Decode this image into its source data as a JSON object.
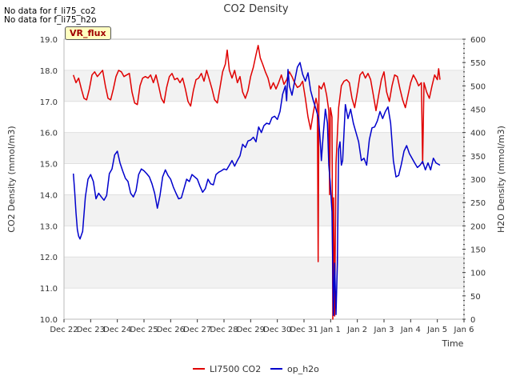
{
  "notes": [
    "No data for f_li75_co2",
    "No data for f_li75_h2o"
  ],
  "badge": "VR_flux",
  "chart_data": {
    "type": "line",
    "title": "CO2 Density",
    "xlabel": "Time",
    "ylabel": "CO2 Density (mmol/m3)",
    "y2label": "H2O Density (mmol/m3)",
    "xlim": [
      0,
      15
    ],
    "ylim": [
      10.0,
      19.0
    ],
    "y2lim": [
      0,
      600
    ],
    "x_ticks": [
      {
        "x": 0,
        "label": "Dec 22"
      },
      {
        "x": 1,
        "label": "Dec 23"
      },
      {
        "x": 2,
        "label": "Dec 24"
      },
      {
        "x": 3,
        "label": "Dec 25"
      },
      {
        "x": 4,
        "label": "Dec 26"
      },
      {
        "x": 5,
        "label": "Dec 27"
      },
      {
        "x": 6,
        "label": "Dec 28"
      },
      {
        "x": 7,
        "label": "Dec 29"
      },
      {
        "x": 8,
        "label": "Dec 30"
      },
      {
        "x": 9,
        "label": "Dec 31"
      },
      {
        "x": 10,
        "label": "Jan 1"
      },
      {
        "x": 11,
        "label": "Jan 2"
      },
      {
        "x": 12,
        "label": "Jan 3"
      },
      {
        "x": 13,
        "label": "Jan 4"
      },
      {
        "x": 14,
        "label": "Jan 5"
      },
      {
        "x": 15,
        "label": "Jan 6"
      }
    ],
    "y_ticks": [
      "10.0",
      "11.0",
      "12.0",
      "13.0",
      "14.0",
      "15.0",
      "16.0",
      "17.0",
      "18.0",
      "19.0"
    ],
    "y2_ticks": [
      "0",
      "50",
      "100",
      "150",
      "200",
      "250",
      "300",
      "350",
      "400",
      "450",
      "500",
      "550",
      "600"
    ],
    "bands": [
      [
        11,
        12
      ],
      [
        13,
        14
      ],
      [
        15,
        16
      ],
      [
        17,
        18
      ]
    ],
    "legend": {
      "position": "bottom"
    },
    "series": [
      {
        "name": "LI7500 CO2",
        "axis": "left",
        "color": "#e00000",
        "points": [
          [
            0.35,
            17.85
          ],
          [
            0.45,
            17.6
          ],
          [
            0.55,
            17.75
          ],
          [
            0.65,
            17.4
          ],
          [
            0.75,
            17.1
          ],
          [
            0.85,
            17.05
          ],
          [
            0.95,
            17.4
          ],
          [
            1.05,
            17.85
          ],
          [
            1.15,
            17.95
          ],
          [
            1.25,
            17.8
          ],
          [
            1.35,
            17.9
          ],
          [
            1.45,
            18.0
          ],
          [
            1.55,
            17.5
          ],
          [
            1.65,
            17.1
          ],
          [
            1.75,
            17.05
          ],
          [
            1.85,
            17.4
          ],
          [
            1.95,
            17.8
          ],
          [
            2.05,
            18.0
          ],
          [
            2.15,
            17.95
          ],
          [
            2.25,
            17.8
          ],
          [
            2.35,
            17.85
          ],
          [
            2.45,
            17.9
          ],
          [
            2.55,
            17.3
          ],
          [
            2.65,
            16.95
          ],
          [
            2.75,
            16.9
          ],
          [
            2.85,
            17.5
          ],
          [
            2.95,
            17.75
          ],
          [
            3.05,
            17.8
          ],
          [
            3.15,
            17.75
          ],
          [
            3.25,
            17.85
          ],
          [
            3.35,
            17.6
          ],
          [
            3.45,
            17.85
          ],
          [
            3.55,
            17.5
          ],
          [
            3.65,
            17.1
          ],
          [
            3.75,
            16.95
          ],
          [
            3.85,
            17.45
          ],
          [
            3.95,
            17.8
          ],
          [
            4.05,
            17.9
          ],
          [
            4.15,
            17.7
          ],
          [
            4.25,
            17.75
          ],
          [
            4.35,
            17.6
          ],
          [
            4.45,
            17.75
          ],
          [
            4.55,
            17.4
          ],
          [
            4.65,
            17.0
          ],
          [
            4.75,
            16.85
          ],
          [
            4.85,
            17.35
          ],
          [
            4.95,
            17.7
          ],
          [
            5.05,
            17.75
          ],
          [
            5.15,
            17.9
          ],
          [
            5.25,
            17.65
          ],
          [
            5.35,
            18.0
          ],
          [
            5.45,
            17.7
          ],
          [
            5.55,
            17.4
          ],
          [
            5.65,
            17.05
          ],
          [
            5.75,
            16.95
          ],
          [
            5.85,
            17.45
          ],
          [
            5.95,
            17.95
          ],
          [
            6.05,
            18.2
          ],
          [
            6.12,
            18.65
          ],
          [
            6.2,
            18.0
          ],
          [
            6.3,
            17.75
          ],
          [
            6.4,
            18.0
          ],
          [
            6.5,
            17.6
          ],
          [
            6.6,
            17.8
          ],
          [
            6.7,
            17.3
          ],
          [
            6.8,
            17.1
          ],
          [
            6.9,
            17.35
          ],
          [
            7.0,
            17.8
          ],
          [
            7.1,
            18.1
          ],
          [
            7.2,
            18.5
          ],
          [
            7.28,
            18.8
          ],
          [
            7.36,
            18.4
          ],
          [
            7.45,
            18.2
          ],
          [
            7.55,
            17.95
          ],
          [
            7.65,
            17.75
          ],
          [
            7.75,
            17.4
          ],
          [
            7.85,
            17.6
          ],
          [
            7.95,
            17.4
          ],
          [
            8.05,
            17.6
          ],
          [
            8.15,
            17.85
          ],
          [
            8.25,
            17.55
          ],
          [
            8.35,
            17.7
          ],
          [
            8.45,
            17.95
          ],
          [
            8.55,
            17.8
          ],
          [
            8.65,
            17.6
          ],
          [
            8.75,
            17.45
          ],
          [
            8.85,
            17.5
          ],
          [
            8.95,
            17.65
          ],
          [
            9.05,
            17.1
          ],
          [
            9.15,
            16.5
          ],
          [
            9.25,
            16.1
          ],
          [
            9.35,
            16.65
          ],
          [
            9.45,
            17.1
          ],
          [
            9.5,
            16.9
          ],
          [
            9.53,
            11.85
          ],
          [
            9.56,
            17.5
          ],
          [
            9.65,
            17.4
          ],
          [
            9.75,
            17.6
          ],
          [
            9.85,
            17.2
          ],
          [
            9.93,
            16.7
          ],
          [
            9.96,
            14.0
          ],
          [
            9.99,
            16.8
          ],
          [
            10.05,
            16.5
          ],
          [
            10.08,
            10.0
          ],
          [
            10.11,
            13.9
          ],
          [
            10.15,
            10.1
          ],
          [
            10.2,
            15.0
          ],
          [
            10.3,
            16.8
          ],
          [
            10.4,
            17.5
          ],
          [
            10.5,
            17.65
          ],
          [
            10.6,
            17.7
          ],
          [
            10.7,
            17.6
          ],
          [
            10.8,
            17.1
          ],
          [
            10.9,
            16.8
          ],
          [
            11.0,
            17.3
          ],
          [
            11.1,
            17.85
          ],
          [
            11.2,
            17.95
          ],
          [
            11.3,
            17.75
          ],
          [
            11.4,
            17.9
          ],
          [
            11.5,
            17.7
          ],
          [
            11.6,
            17.2
          ],
          [
            11.7,
            16.7
          ],
          [
            11.8,
            17.2
          ],
          [
            11.9,
            17.7
          ],
          [
            12.0,
            17.95
          ],
          [
            12.1,
            17.3
          ],
          [
            12.2,
            17.0
          ],
          [
            12.3,
            17.5
          ],
          [
            12.4,
            17.85
          ],
          [
            12.5,
            17.8
          ],
          [
            12.6,
            17.4
          ],
          [
            12.7,
            17.05
          ],
          [
            12.8,
            16.8
          ],
          [
            12.9,
            17.2
          ],
          [
            13.0,
            17.6
          ],
          [
            13.1,
            17.85
          ],
          [
            13.2,
            17.7
          ],
          [
            13.3,
            17.5
          ],
          [
            13.4,
            17.6
          ],
          [
            13.45,
            15.0
          ],
          [
            13.5,
            17.6
          ],
          [
            13.6,
            17.3
          ],
          [
            13.7,
            17.1
          ],
          [
            13.8,
            17.5
          ],
          [
            13.9,
            17.85
          ],
          [
            14.0,
            17.7
          ],
          [
            14.05,
            18.05
          ],
          [
            14.1,
            17.7
          ]
        ]
      },
      {
        "name": "op_h2o",
        "axis": "right",
        "color": "#0000cc",
        "points": [
          [
            0.35,
            312
          ],
          [
            0.4,
            275
          ],
          [
            0.45,
            228
          ],
          [
            0.5,
            192
          ],
          [
            0.55,
            178
          ],
          [
            0.6,
            172
          ],
          [
            0.7,
            188
          ],
          [
            0.8,
            262
          ],
          [
            0.9,
            300
          ],
          [
            1.0,
            310
          ],
          [
            1.1,
            295
          ],
          [
            1.2,
            258
          ],
          [
            1.3,
            270
          ],
          [
            1.4,
            262
          ],
          [
            1.5,
            255
          ],
          [
            1.6,
            265
          ],
          [
            1.7,
            312
          ],
          [
            1.8,
            322
          ],
          [
            1.9,
            352
          ],
          [
            2.0,
            360
          ],
          [
            2.1,
            335
          ],
          [
            2.2,
            318
          ],
          [
            2.3,
            302
          ],
          [
            2.4,
            295
          ],
          [
            2.5,
            270
          ],
          [
            2.6,
            262
          ],
          [
            2.7,
            275
          ],
          [
            2.8,
            310
          ],
          [
            2.9,
            322
          ],
          [
            3.0,
            318
          ],
          [
            3.1,
            312
          ],
          [
            3.2,
            305
          ],
          [
            3.3,
            290
          ],
          [
            3.4,
            270
          ],
          [
            3.5,
            238
          ],
          [
            3.6,
            265
          ],
          [
            3.7,
            305
          ],
          [
            3.8,
            320
          ],
          [
            3.9,
            308
          ],
          [
            4.0,
            300
          ],
          [
            4.1,
            283
          ],
          [
            4.2,
            270
          ],
          [
            4.3,
            258
          ],
          [
            4.4,
            260
          ],
          [
            4.5,
            280
          ],
          [
            4.6,
            300
          ],
          [
            4.7,
            295
          ],
          [
            4.8,
            310
          ],
          [
            4.9,
            305
          ],
          [
            5.0,
            300
          ],
          [
            5.1,
            285
          ],
          [
            5.2,
            272
          ],
          [
            5.3,
            280
          ],
          [
            5.4,
            300
          ],
          [
            5.5,
            290
          ],
          [
            5.6,
            288
          ],
          [
            5.7,
            310
          ],
          [
            5.8,
            315
          ],
          [
            5.9,
            318
          ],
          [
            6.0,
            322
          ],
          [
            6.1,
            320
          ],
          [
            6.2,
            330
          ],
          [
            6.3,
            340
          ],
          [
            6.4,
            328
          ],
          [
            6.5,
            340
          ],
          [
            6.6,
            350
          ],
          [
            6.7,
            375
          ],
          [
            6.8,
            368
          ],
          [
            6.9,
            382
          ],
          [
            7.0,
            384
          ],
          [
            7.1,
            390
          ],
          [
            7.2,
            380
          ],
          [
            7.3,
            412
          ],
          [
            7.4,
            400
          ],
          [
            7.5,
            415
          ],
          [
            7.6,
            420
          ],
          [
            7.7,
            418
          ],
          [
            7.8,
            432
          ],
          [
            7.9,
            435
          ],
          [
            8.0,
            428
          ],
          [
            8.1,
            445
          ],
          [
            8.2,
            482
          ],
          [
            8.3,
            500
          ],
          [
            8.35,
            468
          ],
          [
            8.4,
            535
          ],
          [
            8.45,
            500
          ],
          [
            8.55,
            480
          ],
          [
            8.65,
            510
          ],
          [
            8.75,
            540
          ],
          [
            8.85,
            550
          ],
          [
            8.95,
            525
          ],
          [
            9.05,
            510
          ],
          [
            9.15,
            528
          ],
          [
            9.25,
            490
          ],
          [
            9.35,
            468
          ],
          [
            9.45,
            450
          ],
          [
            9.55,
            430
          ],
          [
            9.62,
            370
          ],
          [
            9.65,
            340
          ],
          [
            9.72,
            395
          ],
          [
            9.8,
            450
          ],
          [
            9.88,
            420
          ],
          [
            9.93,
            330
          ],
          [
            9.98,
            295
          ],
          [
            10.05,
            230
          ],
          [
            10.1,
            8
          ],
          [
            10.15,
            120
          ],
          [
            10.2,
            10
          ],
          [
            10.25,
            120
          ],
          [
            10.3,
            365
          ],
          [
            10.35,
            380
          ],
          [
            10.4,
            330
          ],
          [
            10.45,
            340
          ],
          [
            10.55,
            460
          ],
          [
            10.65,
            430
          ],
          [
            10.75,
            450
          ],
          [
            10.85,
            420
          ],
          [
            10.95,
            400
          ],
          [
            11.05,
            380
          ],
          [
            11.15,
            340
          ],
          [
            11.25,
            345
          ],
          [
            11.35,
            330
          ],
          [
            11.45,
            385
          ],
          [
            11.55,
            410
          ],
          [
            11.65,
            412
          ],
          [
            11.75,
            425
          ],
          [
            11.85,
            445
          ],
          [
            11.95,
            430
          ],
          [
            12.05,
            445
          ],
          [
            12.15,
            455
          ],
          [
            12.25,
            420
          ],
          [
            12.35,
            340
          ],
          [
            12.45,
            305
          ],
          [
            12.55,
            308
          ],
          [
            12.65,
            332
          ],
          [
            12.75,
            360
          ],
          [
            12.85,
            372
          ],
          [
            12.95,
            355
          ],
          [
            13.05,
            345
          ],
          [
            13.15,
            335
          ],
          [
            13.25,
            325
          ],
          [
            13.35,
            330
          ],
          [
            13.45,
            338
          ],
          [
            13.55,
            320
          ],
          [
            13.65,
            335
          ],
          [
            13.75,
            320
          ],
          [
            13.85,
            345
          ],
          [
            13.95,
            335
          ],
          [
            14.1,
            330
          ]
        ]
      }
    ]
  }
}
